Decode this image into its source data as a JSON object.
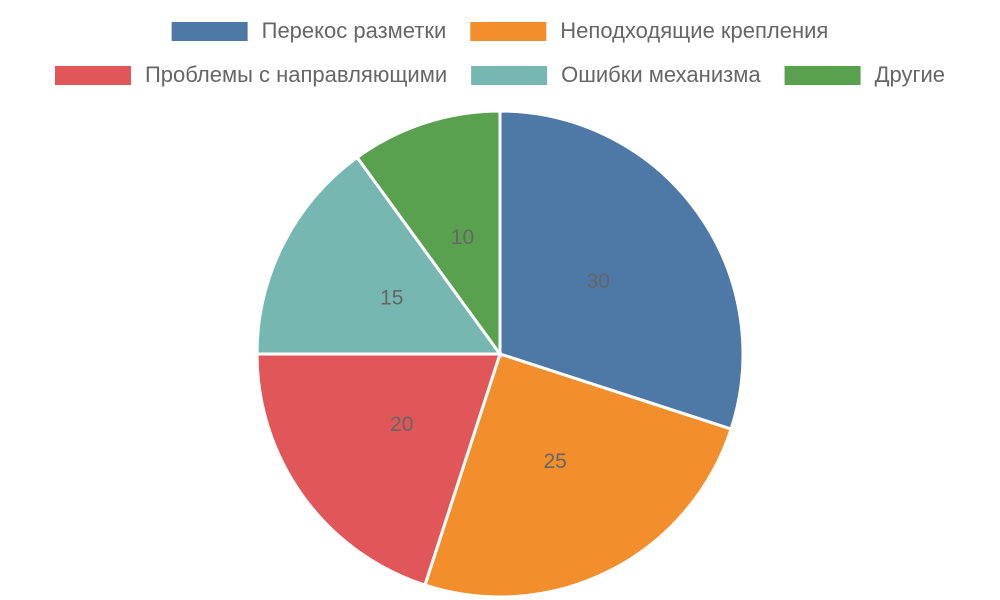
{
  "chart_data": {
    "type": "pie",
    "categories": [
      "Перекос разметки",
      "Неподходящие крепления",
      "Проблемы с направляющими",
      "Ошибки механизма",
      "Другие"
    ],
    "values": [
      30,
      25,
      20,
      15,
      10
    ],
    "colors": [
      "#4e79a7",
      "#f28e2c",
      "#e15759",
      "#76b7b2",
      "#59a14f"
    ],
    "legend": "top"
  }
}
